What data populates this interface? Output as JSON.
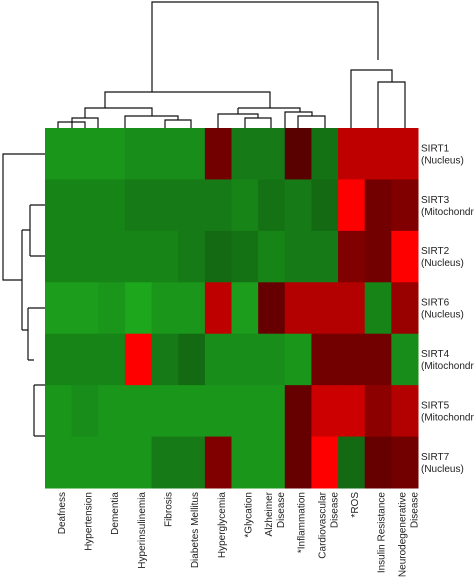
{
  "chart_data": {
    "type": "heatmap",
    "columns": [
      [
        "Deafness"
      ],
      [
        "Hypertension"
      ],
      [
        "Dementia"
      ],
      [
        "Hyperinsulinemia"
      ],
      [
        "Fibrosis"
      ],
      [
        "Diabetes Mellitus"
      ],
      [
        "Hyperglycemia"
      ],
      [
        "*Glycation"
      ],
      [
        "Alzheimer",
        "Disease"
      ],
      [
        "*Inflammation"
      ],
      [
        "Cardiovascular",
        "Disease"
      ],
      [
        "*ROS"
      ],
      [
        "Insulin Resistance"
      ],
      [
        "Neurodegenerative",
        "Disease"
      ]
    ],
    "rows": [
      [
        "SIRT1",
        "(Nucleus)"
      ],
      [
        "SIRT3",
        "(Mitochondria)"
      ],
      [
        "SIRT2",
        "(Nucleus)"
      ],
      [
        "SIRT6",
        "(Nucleus)"
      ],
      [
        "SIRT4",
        "(Mitochondria)"
      ],
      [
        "SIRT5",
        "(Mitochondria)"
      ],
      [
        "SIRT7",
        "(Nucleus)"
      ]
    ],
    "values": [
      [
        -0.85,
        -0.85,
        -0.85,
        -0.8,
        -0.8,
        -0.8,
        0.45,
        -0.7,
        -0.7,
        0.35,
        -0.65,
        0.75,
        0.75,
        0.75
      ],
      [
        -0.75,
        -0.75,
        -0.75,
        -0.7,
        -0.7,
        -0.7,
        -0.7,
        -0.75,
        -0.65,
        -0.7,
        -0.6,
        1,
        0.45,
        0.5
      ],
      [
        -0.75,
        -0.75,
        -0.75,
        -0.75,
        -0.75,
        -0.7,
        -0.6,
        -0.65,
        -0.75,
        -0.7,
        -0.7,
        0.5,
        0.45,
        1
      ],
      [
        -0.9,
        -0.9,
        -0.85,
        -0.95,
        -0.85,
        -0.85,
        0.75,
        -0.9,
        0.4,
        0.7,
        0.7,
        0.7,
        -0.75,
        0.6
      ],
      [
        -0.75,
        -0.75,
        -0.75,
        1,
        -0.7,
        -0.6,
        -0.8,
        -0.8,
        -0.8,
        -0.85,
        0.45,
        0.45,
        0.45,
        -0.8
      ],
      [
        -0.85,
        -0.8,
        -0.85,
        -0.85,
        -0.85,
        -0.85,
        -0.85,
        -0.85,
        -0.85,
        0.4,
        0.8,
        0.8,
        0.55,
        0.7
      ],
      [
        -0.85,
        -0.85,
        -0.85,
        -0.85,
        -0.7,
        -0.7,
        0.5,
        -0.85,
        -0.85,
        0.4,
        1,
        -0.6,
        0.4,
        0.45
      ]
    ],
    "zlim": [
      -1,
      1
    ],
    "color_scale": [
      "#1fb01f",
      "#000000",
      "#ff0000"
    ]
  }
}
